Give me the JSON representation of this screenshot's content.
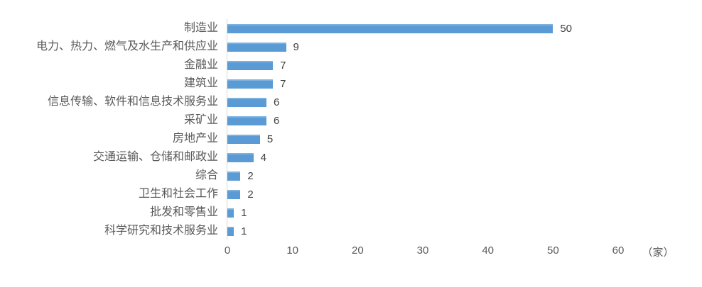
{
  "chart_data": {
    "type": "bar",
    "orientation": "horizontal",
    "title": "",
    "categories": [
      "制造业",
      "电力、热力、燃气及水生产和供应业",
      "金融业",
      "建筑业",
      "信息传输、软件和信息技术服务业",
      "采矿业",
      "房地产业",
      "交通运输、仓储和邮政业",
      "综合",
      "卫生和社会工作",
      "批发和零售业",
      "科学研究和技术服务业"
    ],
    "values": [
      50,
      9,
      7,
      7,
      6,
      6,
      5,
      4,
      2,
      2,
      1,
      1
    ],
    "x_ticks": [
      0,
      10,
      20,
      30,
      40,
      50,
      60
    ],
    "x_unit": "（家）",
    "xlim": [
      0,
      60
    ],
    "grid": false,
    "legend": false,
    "colors": {
      "bar": "#5B9BD5",
      "category_label": "#595959",
      "value_label": "#404040",
      "tick_label": "#595959",
      "axis_line": "#D6D6D6",
      "background": "#FFFFFF"
    }
  }
}
